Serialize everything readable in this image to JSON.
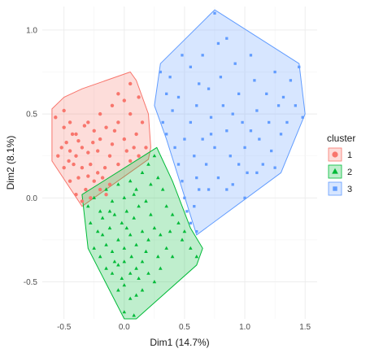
{
  "chart_data": {
    "type": "scatter",
    "title": "",
    "xlabel": "Dim1 (14.7%)",
    "ylabel": "Dim2 (8.1%)",
    "xlim": [
      -0.68,
      1.6
    ],
    "ylim": [
      -0.72,
      1.14
    ],
    "xticks": [
      -0.5,
      0.0,
      0.5,
      1.0,
      1.5
    ],
    "xtick_labels": [
      "-0.5",
      "0.0",
      "0.5",
      "1.0",
      "1.5"
    ],
    "yticks": [
      -0.5,
      0.0,
      0.5,
      1.0
    ],
    "ytick_labels": [
      "-0.5",
      "0.0",
      "0.5",
      "1.0"
    ],
    "grid": true,
    "legend": {
      "title": "cluster",
      "position": "right"
    },
    "series": [
      {
        "name": "1",
        "color": "#F8766D",
        "marker": "circle",
        "hull": [
          [
            -0.6,
            0.53
          ],
          [
            -0.5,
            0.6
          ],
          [
            -0.35,
            0.65
          ],
          [
            0.05,
            0.75
          ],
          [
            0.1,
            0.7
          ],
          [
            0.2,
            0.5
          ],
          [
            0.22,
            0.3
          ],
          [
            0.2,
            0.23
          ],
          [
            -0.35,
            -0.05
          ],
          [
            -0.6,
            0.22
          ]
        ],
        "points": [
          [
            -0.57,
            0.48
          ],
          [
            -0.5,
            0.52
          ],
          [
            -0.45,
            0.45
          ],
          [
            -0.5,
            0.42
          ],
          [
            -0.43,
            0.38
          ],
          [
            -0.48,
            0.33
          ],
          [
            -0.38,
            0.34
          ],
          [
            -0.52,
            0.3
          ],
          [
            -0.45,
            0.28
          ],
          [
            -0.4,
            0.25
          ],
          [
            -0.35,
            0.3
          ],
          [
            -0.3,
            0.27
          ],
          [
            -0.42,
            0.2
          ],
          [
            -0.35,
            0.18
          ],
          [
            -0.28,
            0.2
          ],
          [
            -0.3,
            0.13
          ],
          [
            -0.22,
            0.15
          ],
          [
            -0.25,
            0.1
          ],
          [
            -0.18,
            0.12
          ],
          [
            -0.2,
            0.05
          ],
          [
            -0.12,
            0.08
          ],
          [
            -0.15,
            0.02
          ],
          [
            -0.38,
            0.12
          ],
          [
            -0.32,
            0.05
          ],
          [
            -0.4,
            0.02
          ],
          [
            -0.35,
            -0.02
          ],
          [
            -0.28,
            0.0
          ],
          [
            -0.45,
            0.1
          ],
          [
            -0.5,
            0.18
          ],
          [
            -0.55,
            0.25
          ],
          [
            -0.3,
            0.45
          ],
          [
            -0.2,
            0.5
          ],
          [
            -0.1,
            0.55
          ],
          [
            -0.05,
            0.62
          ],
          [
            0.05,
            0.68
          ],
          [
            0.0,
            0.58
          ],
          [
            -0.15,
            0.42
          ],
          [
            -0.05,
            0.45
          ],
          [
            0.05,
            0.5
          ],
          [
            0.12,
            0.6
          ],
          [
            0.15,
            0.45
          ],
          [
            0.1,
            0.38
          ],
          [
            0.0,
            0.35
          ],
          [
            -0.1,
            0.32
          ],
          [
            -0.2,
            0.35
          ],
          [
            -0.25,
            0.4
          ],
          [
            0.18,
            0.3
          ],
          [
            0.12,
            0.25
          ],
          [
            0.05,
            0.22
          ],
          [
            -0.05,
            0.2
          ],
          [
            -0.12,
            0.25
          ],
          [
            -0.22,
            0.28
          ],
          [
            -0.4,
            0.38
          ],
          [
            -0.33,
            0.43
          ],
          [
            -0.46,
            0.22
          ],
          [
            -0.26,
            0.33
          ],
          [
            0.08,
            0.3
          ],
          [
            -0.08,
            0.4
          ],
          [
            0.02,
            0.28
          ],
          [
            -0.16,
            0.18
          ]
        ]
      },
      {
        "name": "2",
        "color": "#00BA38",
        "marker": "triangle",
        "hull": [
          [
            -0.35,
            0.02
          ],
          [
            0.27,
            0.3
          ],
          [
            0.4,
            0.1
          ],
          [
            0.55,
            -0.18
          ],
          [
            0.65,
            -0.3
          ],
          [
            0.6,
            -0.4
          ],
          [
            0.1,
            -0.72
          ],
          [
            0.0,
            -0.72
          ],
          [
            -0.3,
            -0.3
          ]
        ],
        "points": [
          [
            -0.3,
            -0.05
          ],
          [
            -0.25,
            0.0
          ],
          [
            -0.2,
            -0.08
          ],
          [
            -0.15,
            0.05
          ],
          [
            -0.1,
            -0.02
          ],
          [
            -0.05,
            0.08
          ],
          [
            0.0,
            0.0
          ],
          [
            0.05,
            0.1
          ],
          [
            0.1,
            0.05
          ],
          [
            0.15,
            0.15
          ],
          [
            0.2,
            0.2
          ],
          [
            0.25,
            0.25
          ],
          [
            -0.28,
            -0.15
          ],
          [
            -0.22,
            -0.2
          ],
          [
            -0.18,
            -0.12
          ],
          [
            -0.12,
            -0.18
          ],
          [
            -0.08,
            -0.1
          ],
          [
            -0.02,
            -0.15
          ],
          [
            0.02,
            -0.08
          ],
          [
            0.08,
            -0.12
          ],
          [
            0.12,
            -0.05
          ],
          [
            0.18,
            -0.02
          ],
          [
            0.22,
            0.08
          ],
          [
            0.28,
            0.12
          ],
          [
            0.32,
            0.05
          ],
          [
            0.35,
            -0.05
          ],
          [
            0.4,
            -0.1
          ],
          [
            0.45,
            -0.15
          ],
          [
            0.5,
            -0.2
          ],
          [
            -0.25,
            -0.3
          ],
          [
            -0.2,
            -0.35
          ],
          [
            -0.15,
            -0.28
          ],
          [
            -0.1,
            -0.32
          ],
          [
            -0.05,
            -0.25
          ],
          [
            0.0,
            -0.3
          ],
          [
            0.05,
            -0.22
          ],
          [
            0.1,
            -0.28
          ],
          [
            0.15,
            -0.2
          ],
          [
            0.2,
            -0.25
          ],
          [
            0.25,
            -0.18
          ],
          [
            0.3,
            -0.22
          ],
          [
            0.35,
            -0.3
          ],
          [
            0.4,
            -0.35
          ],
          [
            -0.15,
            -0.42
          ],
          [
            -0.1,
            -0.45
          ],
          [
            -0.05,
            -0.4
          ],
          [
            0.0,
            -0.38
          ],
          [
            0.05,
            -0.45
          ],
          [
            0.1,
            -0.42
          ],
          [
            0.15,
            -0.38
          ],
          [
            0.2,
            -0.45
          ],
          [
            0.25,
            -0.5
          ],
          [
            0.3,
            -0.42
          ],
          [
            -0.05,
            -0.55
          ],
          [
            0.0,
            -0.52
          ],
          [
            0.05,
            -0.6
          ],
          [
            0.1,
            -0.58
          ],
          [
            0.15,
            -0.55
          ],
          [
            0.0,
            -0.68
          ],
          [
            0.08,
            -0.7
          ],
          [
            -0.18,
            -0.22
          ],
          [
            -0.12,
            -0.08
          ],
          [
            0.06,
            -0.35
          ],
          [
            -0.02,
            -0.48
          ],
          [
            0.12,
            -0.48
          ],
          [
            0.18,
            -0.32
          ],
          [
            0.02,
            -0.18
          ],
          [
            -0.08,
            -0.38
          ],
          [
            0.08,
            0.02
          ],
          [
            0.22,
            -0.1
          ],
          [
            0.28,
            -0.35
          ],
          [
            0.38,
            -0.2
          ],
          [
            0.48,
            -0.25
          ],
          [
            0.55,
            -0.3
          ],
          [
            0.6,
            -0.35
          ]
        ]
      },
      {
        "name": "3",
        "color": "#619CFF",
        "marker": "square",
        "hull": [
          [
            0.75,
            1.12
          ],
          [
            1.45,
            0.8
          ],
          [
            1.5,
            0.5
          ],
          [
            1.3,
            0.15
          ],
          [
            0.6,
            -0.22
          ],
          [
            0.35,
            0.35
          ],
          [
            0.25,
            0.55
          ],
          [
            0.3,
            0.8
          ]
        ],
        "points": [
          [
            0.3,
            0.75
          ],
          [
            0.35,
            0.62
          ],
          [
            0.32,
            0.45
          ],
          [
            0.35,
            0.38
          ],
          [
            0.4,
            0.52
          ],
          [
            0.45,
            0.6
          ],
          [
            0.42,
            0.3
          ],
          [
            0.45,
            0.2
          ],
          [
            0.48,
            0.1
          ],
          [
            0.5,
            0.0
          ],
          [
            0.52,
            -0.08
          ],
          [
            0.55,
            -0.15
          ],
          [
            0.6,
            -0.2
          ],
          [
            0.5,
            0.35
          ],
          [
            0.55,
            0.45
          ],
          [
            0.58,
            0.25
          ],
          [
            0.6,
            0.12
          ],
          [
            0.62,
            0.05
          ],
          [
            0.6,
            0.55
          ],
          [
            0.65,
            0.35
          ],
          [
            0.68,
            0.2
          ],
          [
            0.7,
            0.65
          ],
          [
            0.72,
            0.48
          ],
          [
            0.75,
            0.3
          ],
          [
            0.78,
            0.12
          ],
          [
            0.8,
            0.72
          ],
          [
            0.82,
            0.55
          ],
          [
            0.85,
            0.4
          ],
          [
            0.88,
            0.25
          ],
          [
            0.9,
            0.08
          ],
          [
            0.85,
            0.95
          ],
          [
            0.92,
            0.8
          ],
          [
            0.95,
            0.62
          ],
          [
            0.98,
            0.45
          ],
          [
            1.0,
            0.3
          ],
          [
            1.02,
            0.15
          ],
          [
            1.05,
            0.85
          ],
          [
            1.08,
            0.7
          ],
          [
            1.1,
            0.52
          ],
          [
            1.12,
            0.35
          ],
          [
            1.15,
            0.2
          ],
          [
            1.18,
            0.62
          ],
          [
            1.2,
            0.45
          ],
          [
            1.22,
            0.28
          ],
          [
            1.25,
            0.75
          ],
          [
            1.28,
            0.55
          ],
          [
            1.3,
            0.38
          ],
          [
            1.32,
            0.6
          ],
          [
            1.35,
            0.45
          ],
          [
            1.38,
            0.7
          ],
          [
            1.42,
            0.55
          ],
          [
            1.45,
            0.78
          ],
          [
            0.75,
            1.1
          ],
          [
            0.78,
            0.92
          ],
          [
            0.65,
            0.85
          ],
          [
            0.55,
            0.78
          ],
          [
            0.48,
            0.85
          ],
          [
            0.38,
            0.72
          ],
          [
            1.48,
            0.48
          ],
          [
            1.25,
            0.18
          ],
          [
            0.95,
            0.2
          ],
          [
            0.7,
            0.05
          ],
          [
            0.58,
            -0.05
          ],
          [
            1.1,
            0.15
          ],
          [
            1.0,
            0.0
          ],
          [
            0.85,
            0.05
          ],
          [
            0.72,
            0.38
          ],
          [
            0.9,
            0.5
          ],
          [
            1.05,
            0.4
          ],
          [
            0.62,
            0.68
          ]
        ]
      }
    ]
  }
}
